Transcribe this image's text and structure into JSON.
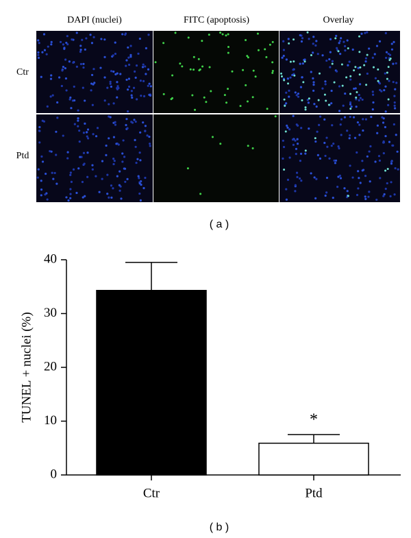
{
  "figure_a": {
    "columns": [
      "DAPI (nuclei)",
      "FITC (apoptosis)",
      "Overlay"
    ],
    "rows": [
      "Ctr",
      "Ptd"
    ],
    "caption": "( a )"
  },
  "chart_data": {
    "type": "bar",
    "ylabel": "TUNEL + nuclei (%)",
    "categories": [
      "Ctr",
      "Ptd"
    ],
    "values": [
      34.3,
      5.9
    ],
    "errors": [
      5.2,
      1.6
    ],
    "colors": [
      "#000000",
      "#ffffff"
    ],
    "edgecolor": "#000000",
    "ylim": [
      0,
      40
    ],
    "yticks": [
      0,
      10,
      20,
      30,
      40
    ],
    "annotation": "*",
    "caption": "( b )"
  }
}
